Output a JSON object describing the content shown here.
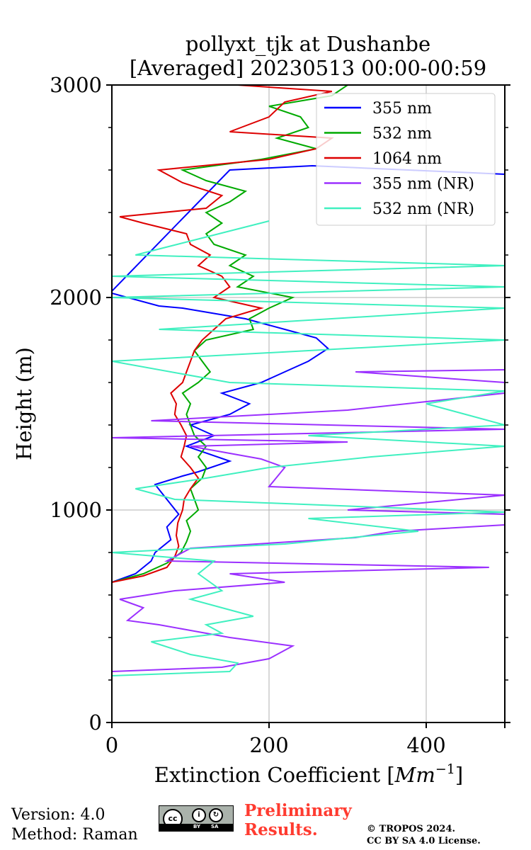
{
  "chart_data": {
    "type": "line",
    "title_line1": "pollyxt_tjk at Dushanbe",
    "title_line2": "[Averaged] 20230513 00:00-00:59",
    "xlabel": "Extinction Coefficient [Mm^-1]",
    "ylabel": "Height (m)",
    "xlim": [
      0,
      500
    ],
    "ylim": [
      0,
      3000
    ],
    "x_ticks": [
      0,
      200,
      400
    ],
    "y_ticks": [
      0,
      1000,
      2000,
      3000
    ],
    "grid": "vertical and horizontal major gridlines",
    "legend_position": "top-right",
    "series": [
      {
        "name": "355 nm",
        "color": "#0000ff",
        "points": [
          [
            0,
            660
          ],
          [
            30,
            700
          ],
          [
            50,
            760
          ],
          [
            55,
            800
          ],
          [
            75,
            860
          ],
          [
            70,
            920
          ],
          [
            85,
            980
          ],
          [
            70,
            1050
          ],
          [
            55,
            1120
          ],
          [
            90,
            1160
          ],
          [
            110,
            1180
          ],
          [
            150,
            1230
          ],
          [
            95,
            1300
          ],
          [
            130,
            1350
          ],
          [
            100,
            1400
          ],
          [
            150,
            1450
          ],
          [
            175,
            1500
          ],
          [
            140,
            1550
          ],
          [
            190,
            1600
          ],
          [
            220,
            1650
          ],
          [
            250,
            1700
          ],
          [
            275,
            1760
          ],
          [
            260,
            1810
          ],
          [
            220,
            1850
          ],
          [
            170,
            1900
          ],
          [
            90,
            1950
          ],
          [
            60,
            1960
          ],
          [
            0,
            2020
          ],
          [
            0,
            2030
          ],
          [
            150,
            2600
          ],
          [
            255,
            2620
          ],
          [
            500,
            2580
          ]
        ]
      },
      {
        "name": "532 nm",
        "color": "#00aa00",
        "points": [
          [
            0,
            660
          ],
          [
            40,
            700
          ],
          [
            70,
            750
          ],
          [
            88,
            800
          ],
          [
            95,
            850
          ],
          [
            100,
            900
          ],
          [
            95,
            950
          ],
          [
            110,
            1000
          ],
          [
            105,
            1050
          ],
          [
            100,
            1100
          ],
          [
            115,
            1150
          ],
          [
            120,
            1200
          ],
          [
            110,
            1250
          ],
          [
            120,
            1300
          ],
          [
            105,
            1350
          ],
          [
            100,
            1400
          ],
          [
            95,
            1450
          ],
          [
            100,
            1500
          ],
          [
            90,
            1550
          ],
          [
            110,
            1600
          ],
          [
            125,
            1650
          ],
          [
            115,
            1700
          ],
          [
            105,
            1750
          ],
          [
            120,
            1800
          ],
          [
            180,
            1850
          ],
          [
            175,
            1900
          ],
          [
            200,
            1950
          ],
          [
            230,
            2000
          ],
          [
            160,
            2050
          ],
          [
            180,
            2100
          ],
          [
            150,
            2150
          ],
          [
            170,
            2200
          ],
          [
            130,
            2250
          ],
          [
            120,
            2300
          ],
          [
            140,
            2350
          ],
          [
            120,
            2400
          ],
          [
            150,
            2450
          ],
          [
            170,
            2500
          ],
          [
            120,
            2550
          ],
          [
            90,
            2600
          ],
          [
            190,
            2650
          ],
          [
            260,
            2700
          ],
          [
            210,
            2750
          ],
          [
            250,
            2800
          ],
          [
            240,
            2850
          ],
          [
            200,
            2900
          ],
          [
            280,
            2950
          ],
          [
            300,
            3000
          ]
        ]
      },
      {
        "name": "1064 nm",
        "color": "#dd0000",
        "points": [
          [
            0,
            660
          ],
          [
            40,
            690
          ],
          [
            70,
            730
          ],
          [
            80,
            780
          ],
          [
            85,
            830
          ],
          [
            82,
            880
          ],
          [
            84,
            940
          ],
          [
            90,
            1000
          ],
          [
            92,
            1050
          ],
          [
            100,
            1100
          ],
          [
            110,
            1150
          ],
          [
            100,
            1200
          ],
          [
            88,
            1250
          ],
          [
            92,
            1300
          ],
          [
            95,
            1350
          ],
          [
            88,
            1400
          ],
          [
            80,
            1450
          ],
          [
            82,
            1500
          ],
          [
            75,
            1550
          ],
          [
            90,
            1600
          ],
          [
            95,
            1650
          ],
          [
            100,
            1700
          ],
          [
            105,
            1750
          ],
          [
            115,
            1800
          ],
          [
            130,
            1850
          ],
          [
            145,
            1900
          ],
          [
            190,
            1950
          ],
          [
            130,
            2000
          ],
          [
            150,
            2050
          ],
          [
            140,
            2100
          ],
          [
            110,
            2150
          ],
          [
            125,
            2200
          ],
          [
            100,
            2250
          ],
          [
            95,
            2300
          ],
          [
            40,
            2350
          ],
          [
            10,
            2380
          ],
          [
            120,
            2420
          ],
          [
            140,
            2480
          ],
          [
            90,
            2540
          ],
          [
            60,
            2600
          ],
          [
            200,
            2650
          ],
          [
            260,
            2700
          ],
          [
            280,
            2750
          ],
          [
            150,
            2780
          ],
          [
            200,
            2850
          ],
          [
            220,
            2920
          ],
          [
            280,
            2970
          ],
          [
            160,
            3000
          ]
        ]
      },
      {
        "name": "355 nm (NR)",
        "color": "#9b30ff",
        "points": [
          [
            0,
            240
          ],
          [
            140,
            260
          ],
          [
            200,
            300
          ],
          [
            230,
            360
          ],
          [
            150,
            400
          ],
          [
            60,
            460
          ],
          [
            20,
            480
          ],
          [
            40,
            540
          ],
          [
            10,
            580
          ],
          [
            80,
            620
          ],
          [
            220,
            660
          ],
          [
            150,
            700
          ],
          [
            480,
            730
          ],
          [
            70,
            760
          ],
          [
            100,
            820
          ],
          [
            310,
            870
          ],
          [
            360,
            900
          ],
          [
            500,
            930
          ],
          [
            500,
            980
          ],
          [
            300,
            1000
          ],
          [
            500,
            1070
          ],
          [
            200,
            1110
          ],
          [
            220,
            1200
          ],
          [
            190,
            1240
          ],
          [
            100,
            1300
          ],
          [
            300,
            1320
          ],
          [
            0,
            1340
          ],
          [
            500,
            1380
          ],
          [
            50,
            1420
          ],
          [
            300,
            1470
          ],
          [
            500,
            1550
          ],
          [
            500,
            1600
          ],
          [
            310,
            1650
          ],
          [
            500,
            1660
          ]
        ]
      },
      {
        "name": "532 nm (NR)",
        "color": "#40f0c0",
        "points": [
          [
            0,
            220
          ],
          [
            150,
            240
          ],
          [
            160,
            280
          ],
          [
            100,
            320
          ],
          [
            50,
            380
          ],
          [
            140,
            420
          ],
          [
            120,
            460
          ],
          [
            180,
            500
          ],
          [
            140,
            540
          ],
          [
            100,
            580
          ],
          [
            140,
            620
          ],
          [
            110,
            700
          ],
          [
            130,
            760
          ],
          [
            0,
            800
          ],
          [
            220,
            840
          ],
          [
            390,
            900
          ],
          [
            250,
            960
          ],
          [
            500,
            990
          ],
          [
            80,
            1050
          ],
          [
            30,
            1100
          ],
          [
            120,
            1150
          ],
          [
            200,
            1200
          ],
          [
            330,
            1250
          ],
          [
            500,
            1300
          ],
          [
            250,
            1350
          ],
          [
            500,
            1400
          ],
          [
            450,
            1450
          ],
          [
            400,
            1500
          ],
          [
            500,
            1560
          ],
          [
            150,
            1600
          ],
          [
            0,
            1700
          ],
          [
            500,
            1800
          ],
          [
            60,
            1850
          ],
          [
            500,
            1950
          ],
          [
            0,
            2000
          ],
          [
            500,
            2050
          ],
          [
            0,
            2100
          ],
          [
            500,
            2150
          ],
          [
            30,
            2200
          ],
          [
            200,
            2360
          ]
        ]
      }
    ]
  },
  "footer": {
    "version": "Version: 4.0",
    "method": "Method: Raman",
    "preliminary_1": "Preliminary",
    "preliminary_2": "Results.",
    "copyright_1": "© TROPOS 2024.",
    "copyright_2": "CC BY SA 4.0 License.",
    "cc_by": "BY",
    "cc_sa": "SA"
  }
}
